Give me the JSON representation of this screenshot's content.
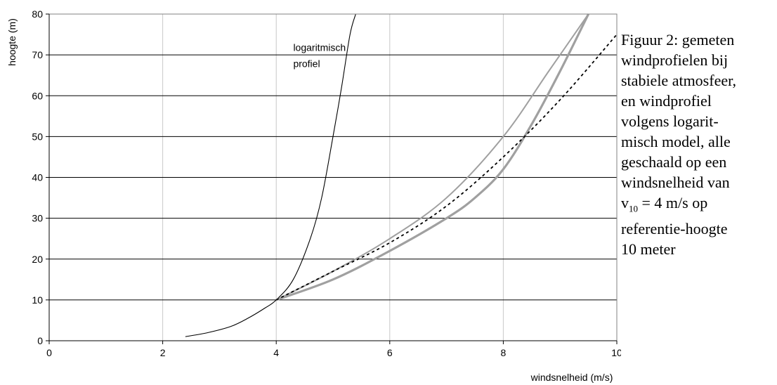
{
  "chart_data": {
    "type": "line",
    "xlabel": "windsnelheid (m/s)",
    "ylabel": "hoogte (m)",
    "xlim": [
      0,
      10
    ],
    "ylim": [
      0,
      80
    ],
    "xticks": [
      0,
      2,
      4,
      6,
      8,
      10
    ],
    "yticks": [
      0,
      10,
      20,
      30,
      40,
      50,
      60,
      70,
      80
    ],
    "grid": true,
    "annotations": [
      {
        "text": "logaritmisch",
        "x": 4.3,
        "y": 71
      },
      {
        "text": "profiel",
        "x": 4.3,
        "y": 67
      }
    ],
    "series": [
      {
        "style": "thin-black",
        "x": [
          2.4,
          2.8,
          3.2,
          3.5,
          3.8,
          4.0,
          4.3,
          4.6,
          4.8,
          5.0,
          5.15,
          5.3,
          5.4
        ],
        "y": [
          1,
          2,
          3.5,
          5.5,
          8,
          10,
          15,
          25,
          35,
          50,
          62,
          75,
          80
        ]
      },
      {
        "style": "gray-upper",
        "x": [
          4.0,
          5.0,
          6.0,
          7.0,
          8.0,
          8.8,
          9.5
        ],
        "y": [
          10,
          17,
          25,
          35,
          50,
          66,
          80
        ]
      },
      {
        "style": "gray-lower",
        "x": [
          4.0,
          5.0,
          6.0,
          7.0,
          7.5,
          8.0,
          8.5,
          9.0,
          9.5
        ],
        "y": [
          10,
          15,
          22,
          30,
          35,
          42,
          53,
          66,
          80
        ]
      },
      {
        "style": "dashed-black",
        "x": [
          4.0,
          5.0,
          6.0,
          7.0,
          8.0,
          9.0,
          10.0
        ],
        "y": [
          10,
          17,
          24,
          33,
          45,
          59,
          75
        ]
      }
    ]
  },
  "caption": {
    "lines": [
      "Figuur 2: gemeten",
      "windprofielen bij",
      "stabiele atmosfeer,",
      "en windprofiel",
      "volgens logarit-",
      "misch model, alle",
      "geschaald op een",
      "windsnelheid van"
    ],
    "v_symbol": "v",
    "v_subscript": "10",
    "v_rest": " = 4 m/s op",
    "lines_after": [
      "referentie-hoogte",
      "10 meter"
    ]
  }
}
